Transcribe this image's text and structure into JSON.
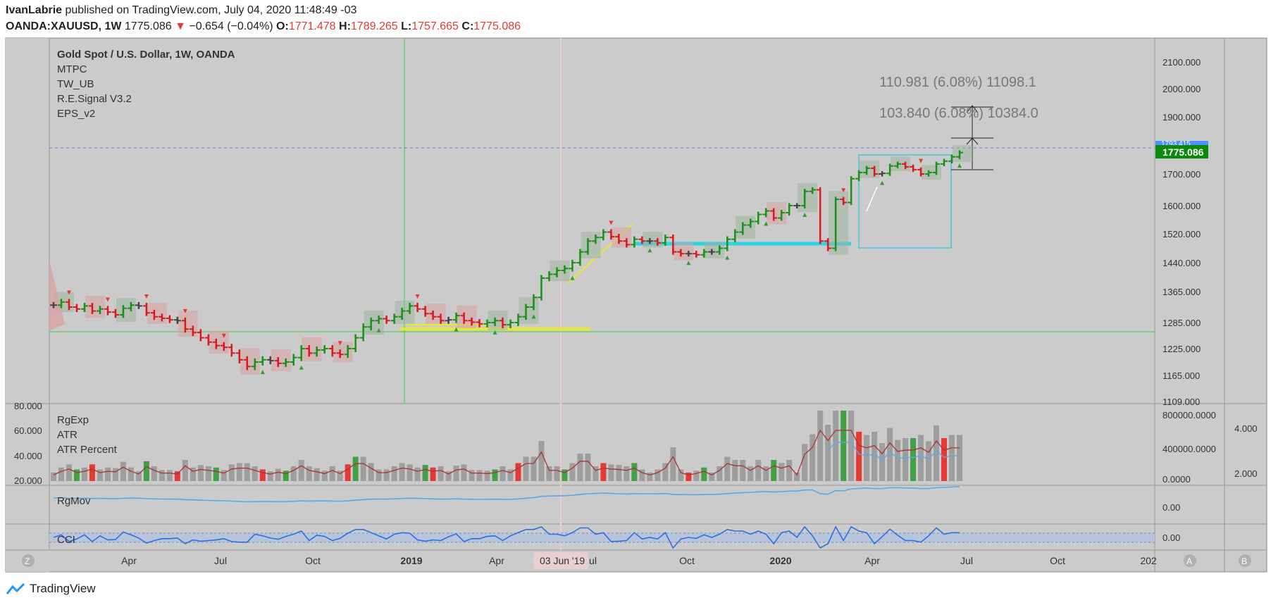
{
  "header": {
    "author": "IvanLabrie",
    "published_text": " published on TradingView.com, July 04, 2020 11:48:49 -03",
    "symbol": "OANDA:XAUUSD, 1W",
    "last": "1775.086",
    "change": "−0.654 (−0.04%)",
    "o_label": "O:",
    "o": "1771.478",
    "h_label": "H:",
    "h": "1789.265",
    "l_label": "L:",
    "l": "1757.665",
    "c_label": "C:",
    "c": "1775.086"
  },
  "legend": [
    "Gold Spot / U.S. Dollar, 1W, OANDA",
    "MTPC",
    "TW_UB",
    "R.E.Signal V3.2",
    "EPS_v2"
  ],
  "measure": {
    "line1": "110.981 (6.08%) 11098.1",
    "line2": "103.840 (6.08%) 10384.0"
  },
  "price_labels": {
    "last": "1775.086",
    "hidden": "1793.415"
  },
  "panels": {
    "p1": [
      "RgExp",
      "ATR",
      "ATR Percent"
    ],
    "p2": "RgMov",
    "p3": "CCI"
  },
  "crosshair_label": "03 Jun '19",
  "buttons": {
    "left": "Z",
    "a": "A",
    "b": "B"
  },
  "brand": "TradingView",
  "colors": {
    "up": "#1a8f1a",
    "down": "#d71920",
    "neutral": "#444444",
    "bg": "#cbcbcb",
    "atr_up": "#43a047",
    "atr_down": "#e53935",
    "atr_neutral": "#9e9e9e"
  },
  "chart_data": {
    "type": "ohlc",
    "title": "Gold Spot / U.S. Dollar, 1W, OANDA",
    "x_ticks": [
      "Apr",
      "Jul",
      "Oct",
      "2019",
      "Apr",
      "Jul",
      "Oct",
      "2020",
      "Apr",
      "Jul",
      "Oct",
      "202"
    ],
    "y_ticks": [
      2100,
      2000,
      1900,
      1700,
      1600,
      1520,
      1440,
      1365,
      1285,
      1225,
      1165,
      1109
    ],
    "close_series": [
      1330,
      1338,
      1325,
      1320,
      1328,
      1315,
      1320,
      1312,
      1305,
      1322,
      1330,
      1328,
      1310,
      1300,
      1296,
      1292,
      1290,
      1270,
      1262,
      1250,
      1240,
      1232,
      1228,
      1215,
      1200,
      1185,
      1195,
      1200,
      1198,
      1192,
      1195,
      1205,
      1225,
      1215,
      1222,
      1225,
      1215,
      1212,
      1225,
      1250,
      1275,
      1290,
      1295,
      1290,
      1300,
      1315,
      1328,
      1320,
      1308,
      1300,
      1290,
      1292,
      1303,
      1290,
      1286,
      1282,
      1285,
      1290,
      1280,
      1285,
      1300,
      1325,
      1350,
      1400,
      1410,
      1420,
      1425,
      1440,
      1470,
      1500,
      1510,
      1525,
      1512,
      1500,
      1490,
      1505,
      1500,
      1500,
      1495,
      1510,
      1470,
      1465,
      1465,
      1462,
      1470,
      1470,
      1480,
      1505,
      1525,
      1545,
      1555,
      1575,
      1585,
      1565,
      1580,
      1600,
      1600,
      1645,
      1650,
      1500,
      1480,
      1620,
      1610,
      1685,
      1705,
      1720,
      1700,
      1702,
      1728,
      1735,
      1725,
      1715,
      1700,
      1705,
      1735,
      1745,
      1760,
      1775
    ],
    "atr_axis_ticks": [
      80,
      60,
      40,
      20
    ],
    "rgexp_axis_ticks": [
      "800000.0000",
      "400000.0000",
      "0.0000"
    ],
    "atr_pct_axis_ticks": [
      "4.000",
      "2.000"
    ],
    "rgmov_axis_ticks": [
      "0.00"
    ],
    "cci_axis_ticks": [
      "0.00"
    ],
    "annotations": [
      "110.981 (6.08%) 11098.1",
      "103.840 (6.08%) 10384.0"
    ]
  }
}
